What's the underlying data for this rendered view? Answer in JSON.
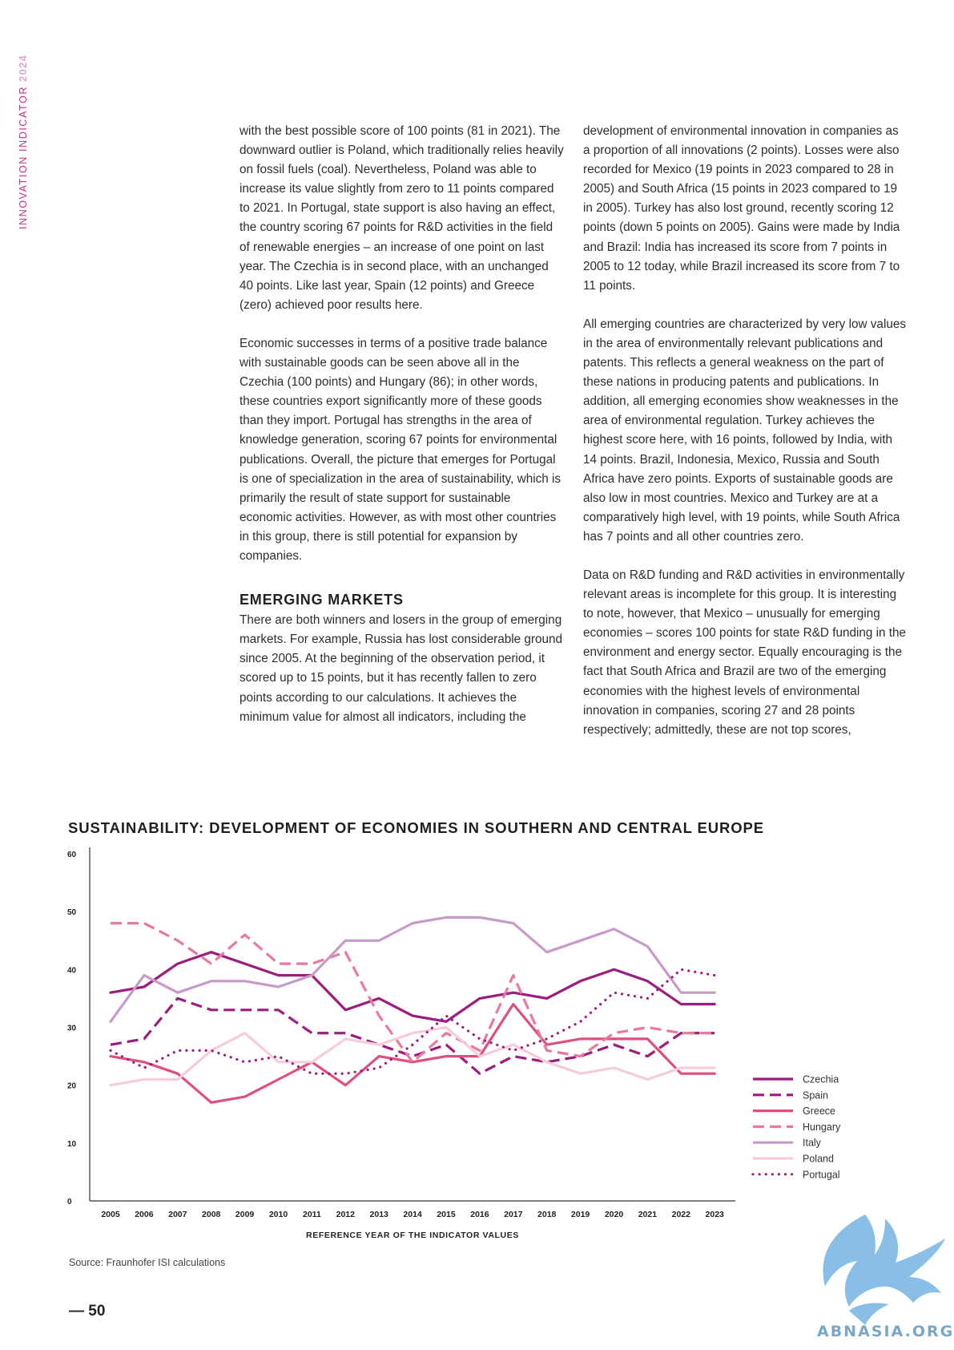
{
  "side_label": {
    "main": "INNOVATION INDICATOR",
    "year": "2024"
  },
  "left_column": {
    "paragraphs": [
      "with the best possible score of 100 points (81 in 2021). The downward outlier is Poland, which traditionally relies heavily on fossil fuels (coal). Nevertheless, Poland was able to increase its value slightly from zero to 11 points compared to 2021. In Portugal, state support is also having an effect, the country scoring 67 points for R&D activities in the field of renewable energies – an increase of one point on last year. The Czechia is in second place, with an unchanged 40 points. Like last year, Spain (12 points) and Greece (zero) achieved poor results here.",
      "Economic successes in terms of a positive trade balance with sustainable goods can be seen above all in the Czechia (100 points) and Hungary (86); in other words, these countries export significantly more of these goods than they import. Portugal has strengths in the area of knowledge generation, scoring 67 points for environmental publications. Overall, the picture that emerges for Portugal is one of specialization in the area of sustainability, which is primarily the result of state support for sustainable economic activities. However, as with most other countries in this group, there is still potential for expansion by companies."
    ],
    "heading": "EMERGING MARKETS",
    "paragraph_after_heading": "There are both winners and losers in the group of emerging markets. For example, Russia has lost considerable ground since 2005. At the beginning of the observation period, it scored up to 15 points, but it has recently fallen to zero points according to our calculations. It achieves the minimum value for almost all indicators, including the"
  },
  "right_column": {
    "paragraphs": [
      "development of environmental innovation in companies as a proportion of all innovations (2 points). Losses were also recorded for Mexico (19 points in 2023 compared to 28 in 2005) and South Africa (15 points in 2023 compared to 19 in 2005). Turkey has also lost ground, recently scoring 12 points (down 5 points on 2005). Gains were made by India and Brazil: India has increased its score from 7 points in 2005 to 12 today, while Brazil increased its score from 7 to 11 points.",
      "All emerging countries are characterized by very low values in the area of environmentally relevant publications and patents. This reflects a general weakness on the part of these nations in producing patents and publications. In addition, all emerging economies show weaknesses in the area of environmental regulation. Turkey achieves the highest score here, with 16 points, followed by India, with 14 points. Brazil, Indonesia, Mexico, Russia and South Africa have zero points. Exports of sustainable goods are also low in most countries. Mexico and Turkey are at a comparatively high level, with 19 points, while South Africa has 7 points and all other countries zero.",
      "Data on R&D funding and R&D activities in environmentally relevant areas is incomplete for this group. It is interesting to note, however, that Mexico – unusually for emerging economies – scores 100 points for state R&D funding in the environment and energy sector. Equally encouraging is the fact that South Africa and Brazil are two of the emerging economies with the highest levels of environmental innovation in companies, scoring 27 and 28 points respectively; admittedly, these are not top scores,"
    ]
  },
  "chart_data": {
    "type": "line",
    "title": "SUSTAINABILITY: DEVELOPMENT OF ECONOMIES IN SOUTHERN AND CENTRAL EUROPE",
    "xlabel": "REFERENCE YEAR OF THE INDICATOR VALUES",
    "ylabel": "",
    "ylim": [
      0,
      60
    ],
    "yticks": [
      0,
      10,
      20,
      30,
      40,
      50,
      60
    ],
    "x": [
      "2005",
      "2006",
      "2007",
      "2008",
      "2009",
      "2010",
      "2011",
      "2012",
      "2013",
      "2014",
      "2015",
      "2016",
      "2017",
      "2018",
      "2019",
      "2020",
      "2021",
      "2022",
      "2023"
    ],
    "legend_position": "right",
    "grid": false,
    "series": [
      {
        "name": "Czechia",
        "color": "#9c1d7e",
        "style": "solid",
        "values": [
          36,
          37,
          41,
          43,
          41,
          39,
          39,
          33,
          35,
          32,
          31,
          35,
          36,
          35,
          38,
          40,
          38,
          34,
          34
        ]
      },
      {
        "name": "Spain",
        "color": "#9c1d7e",
        "style": "dashed",
        "values": [
          27,
          28,
          35,
          33,
          33,
          33,
          29,
          29,
          27,
          25,
          27,
          22,
          25,
          24,
          25,
          27,
          25,
          29,
          29
        ]
      },
      {
        "name": "Greece",
        "color": "#de4f7e",
        "style": "solid",
        "values": [
          25,
          24,
          22,
          17,
          18,
          21,
          24,
          20,
          25,
          24,
          25,
          25,
          34,
          27,
          28,
          28,
          28,
          22,
          22
        ]
      },
      {
        "name": "Hungary",
        "color": "#e8799f",
        "style": "dashed",
        "values": [
          48,
          48,
          45,
          41,
          46,
          41,
          41,
          43,
          32,
          24,
          29,
          26,
          39,
          26,
          25,
          29,
          30,
          29,
          29
        ]
      },
      {
        "name": "Italy",
        "color": "#c89ac8",
        "style": "solid",
        "values": [
          31,
          39,
          36,
          38,
          38,
          37,
          39,
          45,
          45,
          48,
          49,
          49,
          48,
          43,
          45,
          47,
          44,
          36,
          36
        ]
      },
      {
        "name": "Poland",
        "color": "#f6ccd8",
        "style": "solid",
        "values": [
          20,
          21,
          21,
          26,
          29,
          24,
          24,
          28,
          27,
          29,
          30,
          25,
          27,
          24,
          22,
          23,
          21,
          23,
          23
        ]
      },
      {
        "name": "Portugal",
        "color": "#9c1d7e",
        "style": "dotted",
        "values": [
          26,
          23,
          26,
          26,
          24,
          25,
          22,
          22,
          23,
          27,
          32,
          28,
          26,
          28,
          31,
          36,
          35,
          40,
          39
        ]
      }
    ]
  },
  "source": "Source: Fraunhofer ISI calculations",
  "page_number": "— 50",
  "watermark": {
    "text": "ABNASIA.ORG",
    "color": "#7db9e4"
  }
}
